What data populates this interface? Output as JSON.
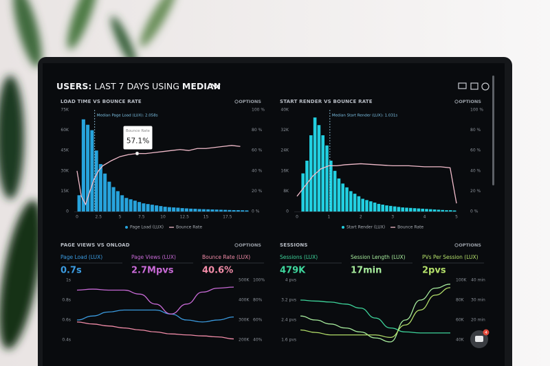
{
  "header": {
    "title_prefix": "USERS:",
    "title_rest": "LAST 7 DAYS USING",
    "title_metric": "MEDIAN"
  },
  "widget": {
    "badge": 4
  },
  "chart_data": [
    {
      "type": "histogram",
      "title": "LOAD TIME VS BOUNCE RATE",
      "options_label": "OPTIONS",
      "median": {
        "value": 2.058,
        "label": "Median Page Load (LUX): 2.058s"
      },
      "tooltip_title": "Bounce Rate",
      "bins": [
        0,
        0.5,
        1,
        1.5,
        2,
        2.5,
        3,
        3.5,
        4,
        4.5,
        5,
        5.5,
        6,
        6.5,
        7,
        7.5,
        8,
        8.5,
        9,
        9.5,
        10,
        10.5,
        11,
        11.5,
        12,
        12.5,
        13,
        13.5,
        14,
        14.5,
        15,
        15.5,
        16,
        16.5,
        17,
        17.5,
        18,
        18.5,
        19,
        19.5,
        20
      ],
      "series": [
        {
          "name": "Page Load (LUX)",
          "color": "#27a3dc",
          "values": [
            12000,
            68000,
            64000,
            60000,
            45000,
            35000,
            28000,
            22000,
            18000,
            15000,
            12000,
            10000,
            9000,
            8000,
            7000,
            6000,
            5500,
            5000,
            4500,
            4000,
            3500,
            3200,
            3000,
            2800,
            2500,
            2300,
            2100,
            2000,
            1800,
            1700,
            1600,
            1500,
            1400,
            1300,
            1200,
            1100,
            1000,
            1000,
            900,
            800
          ]
        },
        {
          "name": "Bounce Rate",
          "color": "#f2bccb",
          "axis": "y2",
          "x": [
            0,
            0.5,
            1,
            1.5,
            2,
            2.5,
            3,
            4,
            5,
            6,
            7,
            8,
            9,
            10,
            11,
            12,
            13,
            14,
            15,
            16,
            17,
            18,
            19
          ],
          "values": [
            40,
            15,
            7,
            20,
            32,
            40,
            45,
            50,
            54,
            56,
            57.1,
            57,
            58,
            59,
            60,
            61,
            60,
            62,
            62,
            63,
            64,
            65,
            64
          ],
          "value_labels": [
            null,
            null,
            null,
            null,
            null,
            null,
            null,
            null,
            null,
            null,
            "57.1%",
            null,
            null,
            null,
            null,
            null,
            null,
            null,
            null,
            null,
            null,
            null,
            null
          ]
        }
      ],
      "xlim": [
        0,
        20
      ],
      "xticks": [
        0,
        2.5,
        5,
        7.5,
        10,
        12.5,
        15,
        17.5
      ],
      "ylim": [
        0,
        75000
      ],
      "yticks": [
        0,
        {
          "value": 15000,
          "label": "15K"
        },
        {
          "value": 30000,
          "label": "30K"
        },
        {
          "value": 45000,
          "label": "45K"
        },
        {
          "value": 60000,
          "label": "60K"
        },
        {
          "value": 75000,
          "label": "75K"
        }
      ],
      "y2lim": [
        0,
        100
      ],
      "y2ticks": [
        {
          "value": 0,
          "label": "0 %"
        },
        {
          "value": 20,
          "label": "20 %"
        },
        {
          "value": 40,
          "label": "40 %"
        },
        {
          "value": 60,
          "label": "60 %"
        },
        {
          "value": 80,
          "label": "80 %"
        },
        {
          "value": 100,
          "label": "100 %"
        }
      ]
    },
    {
      "type": "histogram",
      "title": "START RENDER VS BOUNCE RATE",
      "options_label": "OPTIONS",
      "median": {
        "value": 1.031,
        "label": "Median Start Render (LUX): 1.031s"
      },
      "bins": [
        0,
        0.125,
        0.25,
        0.375,
        0.5,
        0.625,
        0.75,
        0.875,
        1,
        1.125,
        1.25,
        1.375,
        1.5,
        1.625,
        1.75,
        1.875,
        2,
        2.125,
        2.25,
        2.375,
        2.5,
        2.625,
        2.75,
        2.875,
        3,
        3.125,
        3.25,
        3.375,
        3.5,
        3.625,
        3.75,
        3.875,
        4,
        4.125,
        4.25,
        4.375,
        4.5,
        4.625,
        4.75,
        4.875,
        5
      ],
      "series": [
        {
          "name": "Start Render (LUX)",
          "color": "#22cfe0",
          "values": [
            0,
            15000,
            20000,
            30000,
            37000,
            34000,
            30000,
            26000,
            20000,
            16000,
            13000,
            11000,
            9500,
            8000,
            7000,
            6000,
            5000,
            4500,
            4000,
            3500,
            3000,
            2700,
            2400,
            2200,
            2000,
            1800,
            1600,
            1500,
            1400,
            1300,
            1200,
            1100,
            1000,
            900,
            800,
            700,
            600,
            500,
            500,
            400
          ]
        },
        {
          "name": "Bounce Rate",
          "color": "#f2bccb",
          "axis": "y2",
          "x": [
            0,
            0.25,
            0.5,
            0.75,
            1,
            1.25,
            1.5,
            2,
            2.5,
            3,
            3.5,
            4,
            4.5,
            4.8,
            5
          ],
          "values": [
            15,
            25,
            35,
            42,
            45,
            45,
            46,
            47,
            46,
            45,
            45,
            44,
            44,
            43,
            8
          ]
        }
      ],
      "xlim": [
        0,
        5
      ],
      "xticks": [
        0,
        1,
        2,
        3,
        4,
        5
      ],
      "ylim": [
        0,
        40000
      ],
      "yticks": [
        0,
        {
          "value": 8000,
          "label": "8K"
        },
        {
          "value": 16000,
          "label": "16K"
        },
        {
          "value": 24000,
          "label": "24K"
        },
        {
          "value": 32000,
          "label": "32K"
        },
        {
          "value": 40000,
          "label": "40K"
        }
      ],
      "y2lim": [
        0,
        100
      ],
      "y2ticks": [
        {
          "value": 0,
          "label": "0 %"
        },
        {
          "value": 20,
          "label": "20 %"
        },
        {
          "value": 40,
          "label": "40 %"
        },
        {
          "value": 60,
          "label": "60 %"
        },
        {
          "value": 80,
          "label": "80 %"
        },
        {
          "value": 100,
          "label": "100 %"
        }
      ]
    },
    {
      "type": "line",
      "title": "PAGE VIEWS VS ONLOAD",
      "options_label": "OPTIONS",
      "kpis": [
        {
          "label": "Page Load (LUX)",
          "value": "0.7s"
        },
        {
          "label": "Page Views (LUX)",
          "value": "2.7Mpvs"
        },
        {
          "label": "Bounce Rate (LUX)",
          "value": "40.6%"
        }
      ],
      "categories": [
        null,
        null,
        null,
        null,
        null,
        null,
        null,
        null,
        null,
        null,
        null
      ],
      "series": [
        {
          "color": "#3b9be0",
          "values": [
            0.6,
            0.64,
            0.68,
            0.7,
            0.7,
            0.7,
            0.66,
            0.6,
            0.58,
            0.6,
            0.63
          ]
        },
        {
          "color": "#c86ad6",
          "axis": "y2",
          "values": [
            450000,
            455000,
            450000,
            450000,
            430000,
            380000,
            330000,
            380000,
            440000,
            460000,
            465000
          ]
        },
        {
          "color": "#f28ca8",
          "axis": "y3",
          "values": [
            58,
            56,
            54,
            52,
            50,
            48,
            46,
            45,
            44,
            43,
            41
          ]
        }
      ],
      "ylim": [
        0.4,
        1
      ],
      "yticks": [
        {
          "value": 1,
          "label": "1s"
        },
        {
          "value": 0.8,
          "label": "0.8s"
        },
        {
          "value": 0.6,
          "label": "0.6s"
        },
        {
          "value": 0.4,
          "label": "0.4s"
        }
      ],
      "y2lim": [
        200000,
        500000
      ],
      "y2ticks": [
        {
          "value": 500000,
          "label": "500K"
        },
        {
          "value": 400000,
          "label": "400K"
        },
        {
          "value": 300000,
          "label": "300K"
        },
        {
          "value": 200000,
          "label": "200K"
        }
      ],
      "y3lim": [
        40,
        100
      ],
      "y3ticks": [
        {
          "value": 100,
          "label": "100%"
        },
        {
          "value": 80,
          "label": "80%"
        },
        {
          "value": 60,
          "label": "60%"
        },
        {
          "value": 40,
          "label": "40%"
        }
      ]
    },
    {
      "type": "line",
      "title": "SESSIONS",
      "options_label": "OPTIONS",
      "kpis": [
        {
          "label": "Sessions (LUX)",
          "value": "479K"
        },
        {
          "label": "Session Length (LUX)",
          "value": "17min"
        },
        {
          "label": "PVs Per Session (LUX)",
          "value": "2pvs"
        }
      ],
      "categories": [
        null,
        null,
        null,
        null,
        null,
        null,
        null,
        null,
        null,
        null,
        null
      ],
      "series": [
        {
          "color": "#3ed69c",
          "axis": "y2",
          "values": [
            80000,
            79000,
            78000,
            76000,
            72000,
            62000,
            52000,
            48000,
            47000,
            47000,
            47000
          ]
        },
        {
          "color": "#a6eb9c",
          "axis": "y3",
          "values": [
            22,
            20,
            18,
            16,
            14,
            11,
            9,
            20,
            30,
            36,
            38
          ]
        },
        {
          "color": "#b4e06a",
          "values": [
            2.0,
            1.9,
            1.8,
            1.8,
            1.8,
            1.8,
            1.7,
            2.2,
            2.8,
            3.4,
            3.7
          ]
        }
      ],
      "ylim": [
        1.6,
        4
      ],
      "yticks": [
        {
          "value": 4,
          "label": "4 pvs"
        },
        {
          "value": 3.2,
          "label": "3.2 pvs"
        },
        {
          "value": 2.4,
          "label": "2.4 pvs"
        },
        {
          "value": 1.6,
          "label": "1.6 pvs"
        }
      ],
      "y2lim": [
        40000,
        100000
      ],
      "y2ticks": [
        {
          "value": 100000,
          "label": "100K"
        },
        {
          "value": 80000,
          "label": "80K"
        },
        {
          "value": 60000,
          "label": "60K"
        },
        {
          "value": 40000,
          "label": "40K"
        }
      ],
      "y3lim": [
        10,
        40
      ],
      "y3ticks": [
        {
          "value": 40,
          "label": "40 min"
        },
        {
          "value": 30,
          "label": "30 min"
        },
        {
          "value": 20,
          "label": "20 min"
        },
        {
          "value": 10,
          "label": "10 min"
        }
      ]
    }
  ]
}
